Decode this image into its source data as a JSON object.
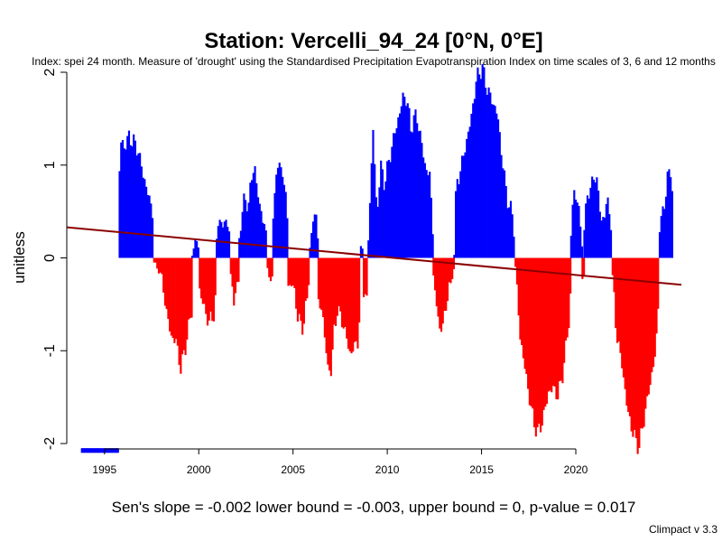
{
  "chart_data": {
    "type": "bar",
    "title": "Station: Vercelli_94_24 [0°N, 0°E]",
    "subtitle": "Index: spei 24 month. Measure of 'drought' using the Standardised Precipitation Evapotranspiration Index on time scales of 3, 6 and 12 months",
    "ylabel": "unitless",
    "xlim": [
      1993,
      2025.6
    ],
    "ylim": [
      -2,
      2
    ],
    "x_ticks": [
      "1995",
      "2000",
      "2005",
      "2010",
      "2015",
      "2020"
    ],
    "y_ticks": [
      "2",
      "1",
      "0",
      "-1",
      "-2"
    ],
    "positive_color": "#0000ff",
    "negative_color": "#ff0000",
    "trend_color": "#8b0000",
    "trend_line": {
      "x": [
        1993,
        2025.6
      ],
      "y": [
        0.33,
        -0.29
      ]
    },
    "footer": "Sen's slope = -0.002   lower bound = -0.003,   upper bound = 0,   p-value = 0.017",
    "credit": "Climpact v 3.3",
    "series": [
      {
        "x": [
          1993.75,
          1995.75
        ],
        "values": [
          -2.05,
          -2.05
        ]
      },
      {
        "x": [
          1995.75,
          1995.83,
          1996.0,
          1996.25,
          1996.5,
          1996.75,
          1997.0,
          1997.25,
          1997.5,
          1997.58
        ],
        "values": [
          0.95,
          1.25,
          1.2,
          1.3,
          1.25,
          1.15,
          0.9,
          0.7,
          0.5,
          0.55
        ]
      },
      {
        "x": [
          1997.58,
          1998.0,
          1998.25,
          1998.5,
          1998.75,
          1999.0,
          1999.25,
          1999.5,
          1999.6
        ],
        "values": [
          -0.05,
          -0.2,
          -0.6,
          -0.85,
          -0.9,
          -1.2,
          -0.95,
          -0.65,
          -0.55
        ]
      },
      {
        "x": [
          1999.6,
          1999.8,
          2000.0
        ],
        "values": [
          0.05,
          0.2,
          0.1
        ]
      },
      {
        "x": [
          2000.0,
          2000.25,
          2000.5,
          2000.75,
          2000.9
        ],
        "values": [
          -0.35,
          -0.55,
          -0.7,
          -0.6,
          -0.35
        ]
      },
      {
        "x": [
          2000.9,
          2001.0,
          2001.25,
          2001.5,
          2001.65
        ],
        "values": [
          0.2,
          0.42,
          0.35,
          0.4,
          0.2
        ]
      },
      {
        "x": [
          2001.65,
          2001.8,
          2002.0,
          2002.1
        ],
        "values": [
          -0.2,
          -0.42,
          -0.35,
          -0.2
        ]
      },
      {
        "x": [
          2002.1,
          2002.3,
          2002.6,
          2002.9,
          2003.0,
          2003.2,
          2003.5,
          2003.6
        ],
        "values": [
          0.2,
          0.6,
          0.6,
          1.05,
          0.8,
          0.55,
          0.3,
          0.15
        ]
      },
      {
        "x": [
          2003.6,
          2003.8,
          2003.9
        ],
        "values": [
          -0.1,
          -0.3,
          -0.15
        ]
      },
      {
        "x": [
          2003.9,
          2004.1,
          2004.4,
          2004.7
        ],
        "values": [
          0.45,
          1.0,
          0.95,
          0.35
        ]
      },
      {
        "x": [
          2004.7,
          2005.0,
          2005.2,
          2005.5,
          2005.75,
          2005.85
        ],
        "values": [
          -0.3,
          -0.3,
          -0.65,
          -0.75,
          -0.35,
          -0.1
        ]
      },
      {
        "x": [
          2005.85,
          2006.0,
          2006.2,
          2006.3
        ],
        "values": [
          0.1,
          0.4,
          0.48,
          0.1
        ]
      },
      {
        "x": [
          2006.3,
          2006.5,
          2006.8,
          2007.0,
          2007.1,
          2007.3,
          2007.6,
          2008.0,
          2008.2,
          2008.4,
          2008.55
        ],
        "values": [
          -0.5,
          -0.55,
          -1.2,
          -1.2,
          -0.85,
          -0.55,
          -0.7,
          -1.05,
          -0.95,
          -0.9,
          -0.4
        ]
      },
      {
        "x": [
          2008.55,
          2008.7
        ],
        "values": [
          0.1,
          0.1
        ]
      },
      {
        "x": [
          2008.7,
          2008.85,
          2008.95
        ],
        "values": [
          -0.35,
          -0.5,
          -0.2
        ]
      },
      {
        "x": [
          2008.95,
          2009.2,
          2009.4,
          2009.6,
          2009.8,
          2010.0,
          2010.3,
          2010.6,
          2010.8,
          2011.0,
          2011.2,
          2011.5,
          2011.8,
          2012.0,
          2012.2,
          2012.4
        ],
        "values": [
          0.2,
          1.4,
          0.45,
          1.0,
          0.8,
          1.0,
          1.3,
          1.55,
          1.75,
          1.7,
          1.4,
          1.55,
          1.2,
          0.95,
          0.9,
          0.2
        ]
      },
      {
        "x": [
          2012.4,
          2012.7,
          2012.9,
          2013.1,
          2013.3,
          2013.5
        ],
        "values": [
          -0.2,
          -0.75,
          -0.75,
          -0.45,
          -0.3,
          -0.1
        ]
      },
      {
        "x": [
          2013.5,
          2013.6,
          2014.0,
          2014.4,
          2014.7,
          2015.0,
          2015.2,
          2015.5,
          2015.8,
          2016.0,
          2016.3,
          2016.6,
          2016.75
        ],
        "values": [
          0.05,
          0.75,
          1.1,
          1.5,
          1.95,
          2.05,
          1.85,
          1.7,
          1.55,
          1.15,
          0.65,
          0.45,
          0.15
        ]
      },
      {
        "x": [
          2016.75,
          2017.0,
          2017.3,
          2017.6,
          2017.9,
          2018.2,
          2018.5,
          2018.8,
          2019.0,
          2019.3,
          2019.6,
          2019.7
        ],
        "values": [
          -0.1,
          -0.85,
          -1.25,
          -1.65,
          -1.9,
          -1.75,
          -1.45,
          -1.4,
          -1.5,
          -1.2,
          -0.65,
          -0.3
        ]
      },
      {
        "x": [
          2019.7,
          2019.9,
          2020.2,
          2020.3
        ],
        "values": [
          0.25,
          0.8,
          0.35,
          0.1
        ]
      },
      {
        "x": [
          2020.3,
          2020.4
        ],
        "values": [
          -0.2,
          -0.2
        ]
      },
      {
        "x": [
          2020.4,
          2020.6,
          2020.9,
          2021.1,
          2021.3,
          2021.6,
          2021.8,
          2021.9
        ],
        "values": [
          0.35,
          0.7,
          0.85,
          0.85,
          0.35,
          0.6,
          0.45,
          0.1
        ]
      },
      {
        "x": [
          2021.9,
          2022.1,
          2022.4,
          2022.7,
          2023.0,
          2023.3,
          2023.6,
          2023.9,
          2024.2,
          2024.4
        ],
        "values": [
          -0.2,
          -0.8,
          -1.15,
          -1.65,
          -1.9,
          -2.05,
          -1.7,
          -1.35,
          -1.0,
          -0.2
        ]
      },
      {
        "x": [
          2024.4,
          2024.6,
          2024.8,
          2025.0,
          2025.1
        ],
        "values": [
          0.35,
          0.5,
          0.85,
          0.95,
          0.65
        ]
      }
    ]
  }
}
